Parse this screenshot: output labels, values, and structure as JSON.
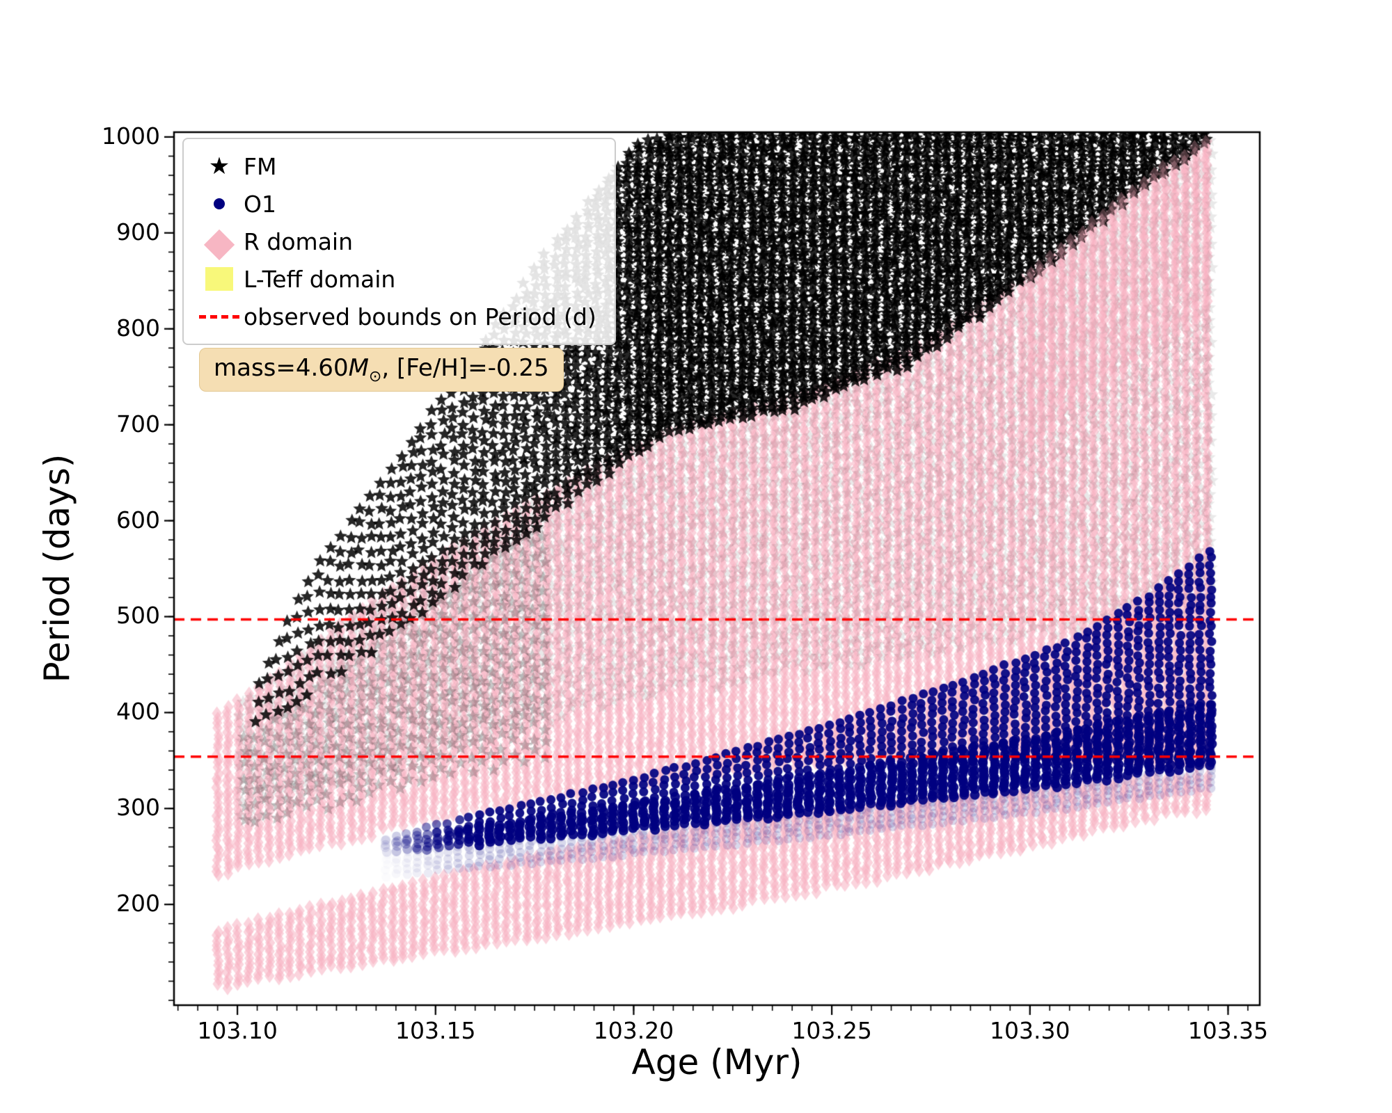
{
  "chart_data": {
    "type": "scatter",
    "title": "",
    "xlabel": "Age (Myr)",
    "ylabel": "Period (days)",
    "xlim": [
      103.084,
      103.358
    ],
    "ylim": [
      95,
      1005
    ],
    "x_ticks": [
      103.1,
      103.15,
      103.2,
      103.25,
      103.3,
      103.35
    ],
    "x_tick_labels": [
      "103.10",
      "103.15",
      "103.20",
      "103.25",
      "103.30",
      "103.35"
    ],
    "y_ticks": [
      200,
      300,
      400,
      500,
      600,
      700,
      800,
      900,
      1000
    ],
    "y_tick_labels": [
      "200",
      "300",
      "400",
      "500",
      "600",
      "700",
      "800",
      "900",
      "1000"
    ],
    "x_minor_step": 0.005,
    "y_minor_step": 20,
    "grid": false,
    "column_step": 0.0026,
    "legend": {
      "position": "upper left",
      "entries": [
        {
          "label": "FM",
          "marker": "star",
          "color": "#000000"
        },
        {
          "label": "O1",
          "marker": "circle",
          "color": "#000080"
        },
        {
          "label": "R domain",
          "marker": "diamond",
          "color": "#f7b6c3"
        },
        {
          "label": "L-Teff domain",
          "marker": "square",
          "color": "#f8f87a"
        },
        {
          "label": "observed bounds on Period (d)",
          "marker": "dashed-line",
          "color": "#ff0000"
        }
      ]
    },
    "annotation": {
      "text_plain": "mass=4.60M⊙, [Fe/H]=-0.25",
      "prefix": "mass=4.60",
      "mass_symbol": "M",
      "sun_symbol": "⊙",
      "suffix": ", [Fe/H]=-0.25",
      "bbox_color": "#f5deb3"
    },
    "observed_bounds": {
      "label": "observed bounds on Period (d)",
      "values": [
        497,
        354
      ],
      "color": "#ff0000",
      "linestyle": "dashed"
    },
    "series": {
      "fm": {
        "name": "FM",
        "marker": "star",
        "color": "#000000",
        "ages": [
          103.105,
          103.12,
          103.14,
          103.16,
          103.18,
          103.2,
          103.21,
          103.24,
          103.27,
          103.3,
          103.33,
          103.346
        ],
        "lower": [
          375,
          425,
          480,
          545,
          608,
          668,
          693,
          715,
          763,
          852,
          950,
          993
        ],
        "upper": [
          430,
          555,
          660,
          775,
          890,
          990,
          1005,
          1005,
          1005,
          1005,
          1005,
          1005
        ]
      },
      "o1": {
        "name": "O1",
        "marker": "circle",
        "color": "#000080",
        "ages": [
          103.135,
          103.16,
          103.19,
          103.22,
          103.25,
          103.28,
          103.31,
          103.33,
          103.346
        ],
        "lower": [
          252,
          262,
          272,
          284,
          296,
          310,
          324,
          336,
          345
        ],
        "upper": [
          266,
          292,
          320,
          352,
          388,
          428,
          474,
          522,
          570
        ]
      },
      "r_domain": {
        "name": "R domain",
        "marker": "diamond",
        "color": "#ffc0cb",
        "bands": [
          {
            "ages": [
              103.095,
              103.11,
              103.13,
              103.15,
              103.17,
              103.19,
              103.21,
              103.24,
              103.27,
              103.3,
              103.33,
              103.346
            ],
            "lower": [
              228,
              248,
              268,
              288,
              305,
              318,
              330,
              342,
              350,
              352,
              348,
              342
            ],
            "upper": [
              398,
              440,
              505,
              560,
              610,
              655,
              695,
              728,
              778,
              858,
              958,
              1000
            ]
          },
          {
            "ages": [
              103.095,
              103.11,
              103.13,
              103.15,
              103.17,
              103.19,
              103.21,
              103.24,
              103.27,
              103.3,
              103.33,
              103.346
            ],
            "lower": [
              112,
              122,
              135,
              148,
              160,
              172,
              186,
              208,
              232,
              258,
              288,
              298
            ],
            "upper": [
              172,
              188,
              208,
              228,
              246,
              262,
              276,
              292,
              305,
              318,
              330,
              334
            ]
          }
        ]
      },
      "l_teff_domain": {
        "name": "L-Teff domain",
        "marker": "square",
        "color": "#f8f87a"
      }
    }
  }
}
